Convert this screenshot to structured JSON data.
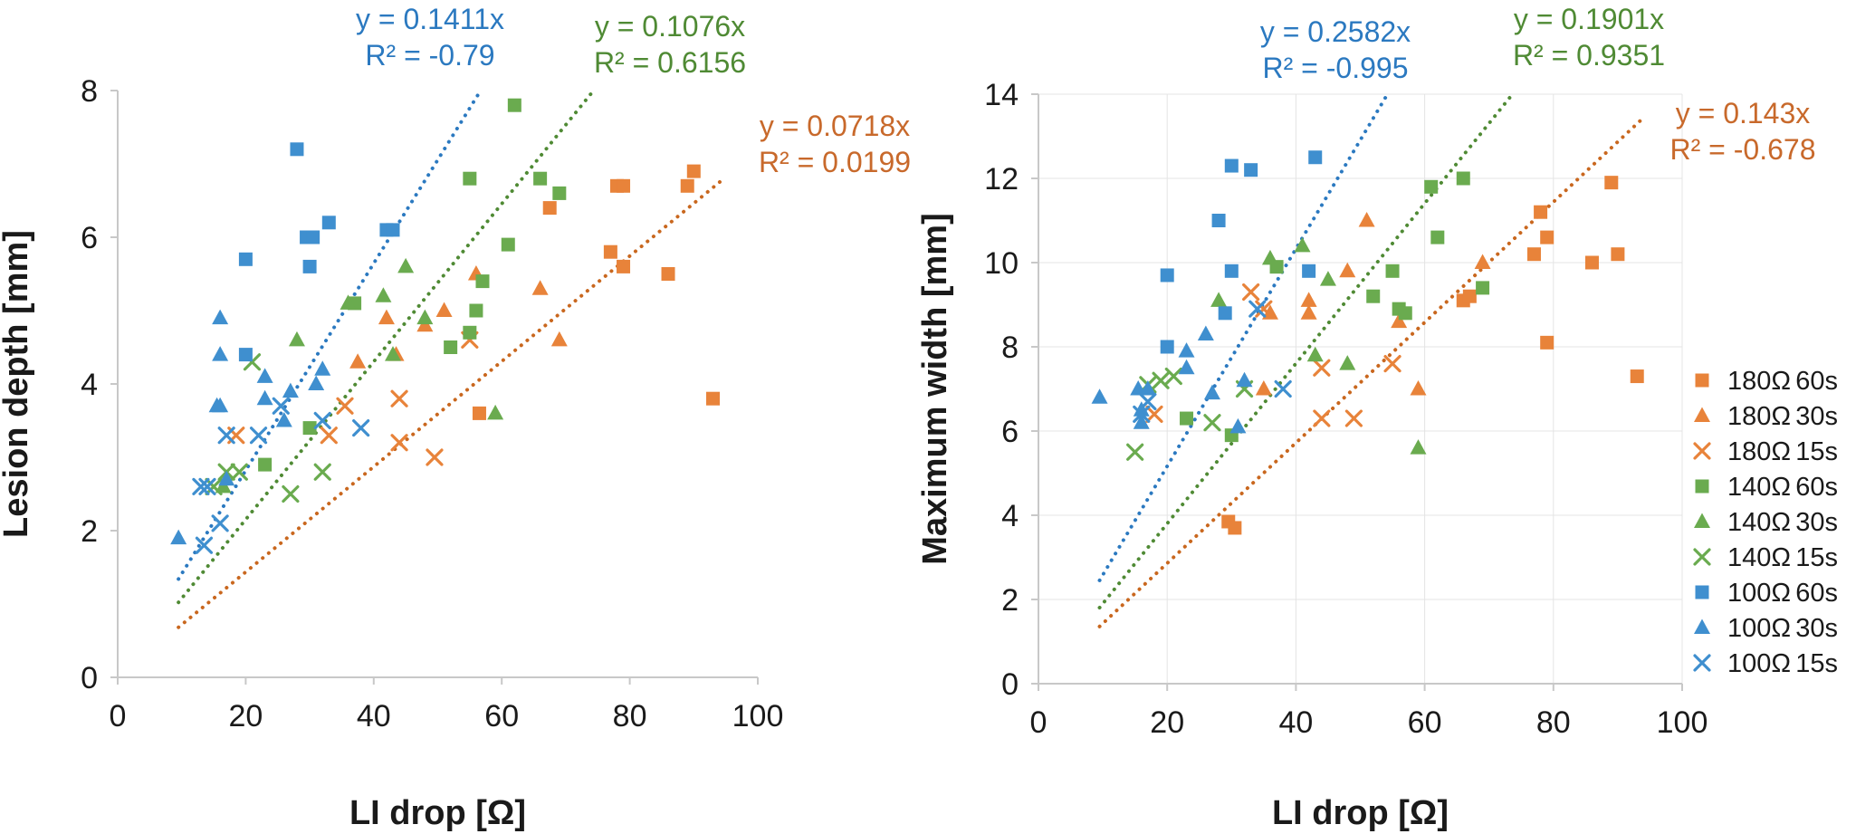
{
  "colors": {
    "orange": "#e8833a",
    "green": "#6aab4f",
    "blue": "#3f8fcf",
    "trend_orange": "#c9671e",
    "trend_green": "#4f8a34",
    "trend_blue": "#2b79c0",
    "eq_orange": "#c8692b",
    "eq_green": "#4f8a34",
    "eq_blue": "#2b79c0"
  },
  "legend": [
    {
      "label": "180Ω",
      "duration": "60s",
      "color": "orange",
      "marker": "square"
    },
    {
      "label": "180Ω",
      "duration": "30s",
      "color": "orange",
      "marker": "triangle"
    },
    {
      "label": "180Ω",
      "duration": "15s",
      "color": "orange",
      "marker": "x"
    },
    {
      "label": "140Ω",
      "duration": "60s",
      "color": "green",
      "marker": "square"
    },
    {
      "label": "140Ω",
      "duration": "30s",
      "color": "green",
      "marker": "triangle"
    },
    {
      "label": "140Ω",
      "duration": "15s",
      "color": "green",
      "marker": "x"
    },
    {
      "label": "100Ω",
      "duration": "60s",
      "color": "blue",
      "marker": "square"
    },
    {
      "label": "100Ω",
      "duration": "30s",
      "color": "blue",
      "marker": "triangle"
    },
    {
      "label": "100Ω",
      "duration": "15s",
      "color": "blue",
      "marker": "x"
    }
  ],
  "chart_data": [
    {
      "type": "scatter",
      "xlabel": "LI drop [Ω]",
      "ylabel": "Lesion depth [mm]",
      "xlim": [
        0,
        100
      ],
      "ylim": [
        0,
        8
      ],
      "xticks": [
        "0",
        "20",
        "40",
        "60",
        "80",
        "100"
      ],
      "yticks": [
        "0",
        "2",
        "4",
        "6",
        "8"
      ],
      "grid": false,
      "trendlines": [
        {
          "color": "blue",
          "slope": 0.1411,
          "x_range": [
            9.5,
            56.7
          ],
          "equation": "y = 0.1411x",
          "r2": "R² = -0.79"
        },
        {
          "color": "green",
          "slope": 0.1076,
          "x_range": [
            9.5,
            74.4
          ],
          "equation": "y = 0.1076x",
          "r2": "R² = 0.6156"
        },
        {
          "color": "orange",
          "slope": 0.0718,
          "x_range": [
            9.5,
            94.8
          ],
          "equation": "y = 0.0718x",
          "r2": "R² = 0.0199"
        }
      ],
      "series": [
        {
          "name": "180Ω 60s",
          "color": "orange",
          "marker": "square",
          "points": [
            [
              56.5,
              3.6
            ],
            [
              67.5,
              6.4
            ],
            [
              77,
              5.8
            ],
            [
              78,
              6.7
            ],
            [
              79,
              5.6
            ],
            [
              79,
              6.7
            ],
            [
              86,
              5.5
            ],
            [
              89,
              6.7
            ],
            [
              90,
              6.9
            ],
            [
              93,
              3.8
            ]
          ]
        },
        {
          "name": "180Ω 30s",
          "color": "orange",
          "marker": "triangle",
          "points": [
            [
              37.5,
              4.3
            ],
            [
              42,
              4.9
            ],
            [
              43.5,
              4.4
            ],
            [
              48,
              4.8
            ],
            [
              51,
              5.0
            ],
            [
              56,
              5.5
            ],
            [
              66,
              5.3
            ],
            [
              69,
              4.6
            ]
          ]
        },
        {
          "name": "180Ω 15s",
          "color": "orange",
          "marker": "x",
          "points": [
            [
              18.5,
              3.3
            ],
            [
              33,
              3.3
            ],
            [
              35.5,
              3.7
            ],
            [
              44,
              3.8
            ],
            [
              44,
              3.2
            ],
            [
              49.5,
              3.0
            ],
            [
              55,
              4.6
            ]
          ]
        },
        {
          "name": "140Ω 60s",
          "color": "green",
          "marker": "square",
          "points": [
            [
              23,
              2.9
            ],
            [
              30,
              3.4
            ],
            [
              37,
              5.1
            ],
            [
              52,
              4.5
            ],
            [
              55,
              4.7
            ],
            [
              55,
              6.8
            ],
            [
              56,
              5.0
            ],
            [
              57,
              5.4
            ],
            [
              61,
              5.9
            ],
            [
              62,
              7.8
            ],
            [
              66,
              6.8
            ],
            [
              69,
              6.6
            ]
          ]
        },
        {
          "name": "140Ω 30s",
          "color": "green",
          "marker": "triangle",
          "points": [
            [
              16.5,
              2.6
            ],
            [
              28,
              4.6
            ],
            [
              36,
              5.1
            ],
            [
              41.5,
              5.2
            ],
            [
              43,
              4.4
            ],
            [
              45,
              5.6
            ],
            [
              48,
              4.9
            ],
            [
              59,
              3.6
            ]
          ]
        },
        {
          "name": "140Ω 15s",
          "color": "green",
          "marker": "x",
          "points": [
            [
              15,
              2.6
            ],
            [
              17,
              2.8
            ],
            [
              19,
              2.8
            ],
            [
              21,
              4.3
            ],
            [
              27,
              2.5
            ],
            [
              32,
              2.8
            ]
          ]
        },
        {
          "name": "100Ω 60s",
          "color": "blue",
          "marker": "square",
          "points": [
            [
              20,
              4.4
            ],
            [
              20,
              5.7
            ],
            [
              28,
              7.2
            ],
            [
              29.5,
              6.0
            ],
            [
              30,
              5.6
            ],
            [
              30.5,
              6.0
            ],
            [
              33,
              6.2
            ],
            [
              42,
              6.1
            ],
            [
              43,
              6.1
            ]
          ]
        },
        {
          "name": "100Ω 30s",
          "color": "blue",
          "marker": "triangle",
          "points": [
            [
              9.5,
              1.9
            ],
            [
              15.5,
              3.7
            ],
            [
              16,
              4.9
            ],
            [
              16,
              4.4
            ],
            [
              16,
              3.7
            ],
            [
              17,
              2.7
            ],
            [
              23,
              4.1
            ],
            [
              23,
              3.8
            ],
            [
              26,
              3.5
            ],
            [
              27,
              3.9
            ],
            [
              31,
              4.0
            ],
            [
              32,
              4.2
            ]
          ]
        },
        {
          "name": "100Ω 15s",
          "color": "blue",
          "marker": "x",
          "points": [
            [
              13,
              2.6
            ],
            [
              13.5,
              1.8
            ],
            [
              14,
              2.6
            ],
            [
              16,
              2.1
            ],
            [
              17,
              3.3
            ],
            [
              22,
              3.3
            ],
            [
              25.5,
              3.7
            ],
            [
              32,
              3.5
            ],
            [
              38,
              3.4
            ]
          ]
        }
      ]
    },
    {
      "type": "scatter",
      "xlabel": "LI drop [Ω]",
      "ylabel": "Maximum width [mm]",
      "xlim": [
        0,
        100
      ],
      "ylim": [
        0,
        14
      ],
      "xticks": [
        "0",
        "20",
        "40",
        "60",
        "80",
        "100"
      ],
      "yticks": [
        "0",
        "2",
        "4",
        "6",
        "8",
        "10",
        "12",
        "14"
      ],
      "grid": true,
      "trendlines": [
        {
          "color": "blue",
          "slope": 0.2582,
          "x_range": [
            9.5,
            54.2
          ],
          "equation": "y = 0.2582x",
          "r2": "R² = -0.995"
        },
        {
          "color": "green",
          "slope": 0.1901,
          "x_range": [
            9.5,
            73.6
          ],
          "equation": "y = 0.1901x",
          "r2": "R² = 0.9351"
        },
        {
          "color": "orange",
          "slope": 0.143,
          "x_range": [
            9.5,
            93.6
          ],
          "equation": "y = 0.143x",
          "r2": "R² = -0.678"
        }
      ],
      "series": [
        {
          "name": "180Ω 60s",
          "color": "orange",
          "marker": "square",
          "points": [
            [
              29.5,
              3.85
            ],
            [
              30.5,
              3.7
            ],
            [
              66,
              9.1
            ],
            [
              67,
              9.2
            ],
            [
              77,
              10.2
            ],
            [
              78,
              11.2
            ],
            [
              79,
              8.1
            ],
            [
              79,
              10.6
            ],
            [
              86,
              10.0
            ],
            [
              89,
              11.9
            ],
            [
              90,
              10.2
            ],
            [
              93,
              7.3
            ]
          ]
        },
        {
          "name": "180Ω 30s",
          "color": "orange",
          "marker": "triangle",
          "points": [
            [
              35,
              7.0
            ],
            [
              36,
              8.8
            ],
            [
              42,
              9.1
            ],
            [
              42,
              8.8
            ],
            [
              48,
              9.8
            ],
            [
              51,
              11.0
            ],
            [
              56,
              8.6
            ],
            [
              59,
              7.0
            ],
            [
              69,
              10.0
            ]
          ]
        },
        {
          "name": "180Ω 15s",
          "color": "orange",
          "marker": "x",
          "points": [
            [
              18,
              6.4
            ],
            [
              33,
              9.3
            ],
            [
              35,
              8.9
            ],
            [
              44,
              6.3
            ],
            [
              44,
              7.5
            ],
            [
              49,
              6.3
            ],
            [
              55,
              7.6
            ]
          ]
        },
        {
          "name": "140Ω 60s",
          "color": "green",
          "marker": "square",
          "points": [
            [
              23,
              6.3
            ],
            [
              30,
              5.9
            ],
            [
              37,
              9.9
            ],
            [
              52,
              9.2
            ],
            [
              55,
              9.8
            ],
            [
              56,
              8.9
            ],
            [
              57,
              8.8
            ],
            [
              61,
              11.8
            ],
            [
              62,
              10.6
            ],
            [
              66,
              12.0
            ],
            [
              69,
              9.4
            ]
          ]
        },
        {
          "name": "140Ω 30s",
          "color": "green",
          "marker": "triangle",
          "points": [
            [
              28,
              9.1
            ],
            [
              36,
              10.1
            ],
            [
              41,
              10.4
            ],
            [
              43,
              7.8
            ],
            [
              45,
              9.6
            ],
            [
              48,
              7.6
            ],
            [
              59,
              5.6
            ]
          ]
        },
        {
          "name": "140Ω 15s",
          "color": "green",
          "marker": "x",
          "points": [
            [
              15,
              5.5
            ],
            [
              17,
              7.1
            ],
            [
              19,
              7.2
            ],
            [
              21,
              7.3
            ],
            [
              27,
              6.2
            ],
            [
              32,
              7.0
            ]
          ]
        },
        {
          "name": "100Ω 60s",
          "color": "blue",
          "marker": "square",
          "points": [
            [
              20,
              8.0
            ],
            [
              20,
              9.7
            ],
            [
              28,
              11.0
            ],
            [
              29,
              8.8
            ],
            [
              30,
              9.8
            ],
            [
              30,
              12.3
            ],
            [
              33,
              12.2
            ],
            [
              42,
              9.8
            ],
            [
              43,
              12.5
            ]
          ]
        },
        {
          "name": "100Ω 30s",
          "color": "blue",
          "marker": "triangle",
          "points": [
            [
              9.5,
              6.8
            ],
            [
              15.5,
              7.0
            ],
            [
              16,
              6.2
            ],
            [
              16,
              6.5
            ],
            [
              17,
              7.0
            ],
            [
              23,
              7.9
            ],
            [
              23,
              7.5
            ],
            [
              26,
              8.3
            ],
            [
              27,
              6.9
            ],
            [
              31,
              6.1
            ],
            [
              32,
              7.2
            ]
          ]
        },
        {
          "name": "100Ω 15s",
          "color": "blue",
          "marker": "x",
          "points": [
            [
              16,
              6.4
            ],
            [
              17,
              6.7
            ],
            [
              34,
              8.9
            ],
            [
              38,
              7.0
            ]
          ]
        }
      ]
    }
  ]
}
